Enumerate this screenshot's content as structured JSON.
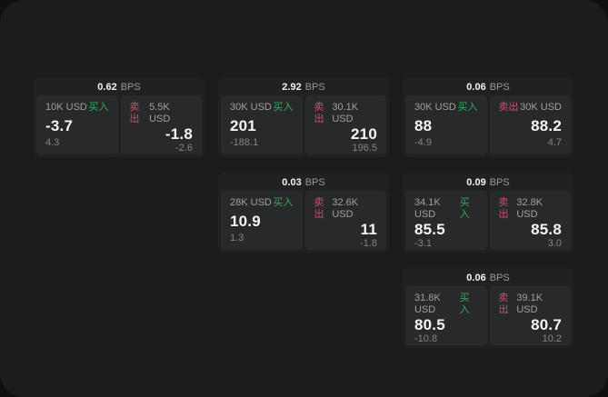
{
  "labels": {
    "bps_unit": "BPS",
    "buy": "买入",
    "sell": "卖出"
  },
  "colors": {
    "page_background": "#0e0f10",
    "surface_background": "#1b1c1d",
    "card_background": "#212122",
    "panel_background": "#28292a",
    "primary_text": "#f4f5f6",
    "secondary_text": "#9fa0a1",
    "delta_text": "#838485",
    "buy_green": "#35ab5d",
    "sell_red": "#c4536a"
  },
  "cards": [
    {
      "bps": "0.62",
      "buy": {
        "amount": "10K USD",
        "value": "-3.7",
        "delta": "4.3"
      },
      "sell": {
        "amount": "5.5K USD",
        "value": "-1.8",
        "delta": "-2.6"
      }
    },
    {
      "bps": "2.92",
      "buy": {
        "amount": "30K USD",
        "value": "201",
        "delta": "-188.1"
      },
      "sell": {
        "amount": "30.1K USD",
        "value": "210",
        "delta": "196.5"
      }
    },
    {
      "bps": "0.06",
      "buy": {
        "amount": "30K USD",
        "value": "88",
        "delta": "-4.9"
      },
      "sell": {
        "amount": "30K USD",
        "value": "88.2",
        "delta": "4.7"
      }
    },
    {
      "bps": "0.03",
      "buy": {
        "amount": "28K USD",
        "value": "10.9",
        "delta": "1.3"
      },
      "sell": {
        "amount": "32.6K USD",
        "value": "11",
        "delta": "-1.8"
      }
    },
    {
      "bps": "0.09",
      "buy": {
        "amount": "34.1K USD",
        "value": "85.5",
        "delta": "-3.1"
      },
      "sell": {
        "amount": "32.8K USD",
        "value": "85.8",
        "delta": "3.0"
      }
    },
    {
      "bps": "0.06",
      "buy": {
        "amount": "31.8K USD",
        "value": "80.5",
        "delta": "-10.8"
      },
      "sell": {
        "amount": "39.1K USD",
        "value": "80.7",
        "delta": "10.2"
      }
    }
  ]
}
